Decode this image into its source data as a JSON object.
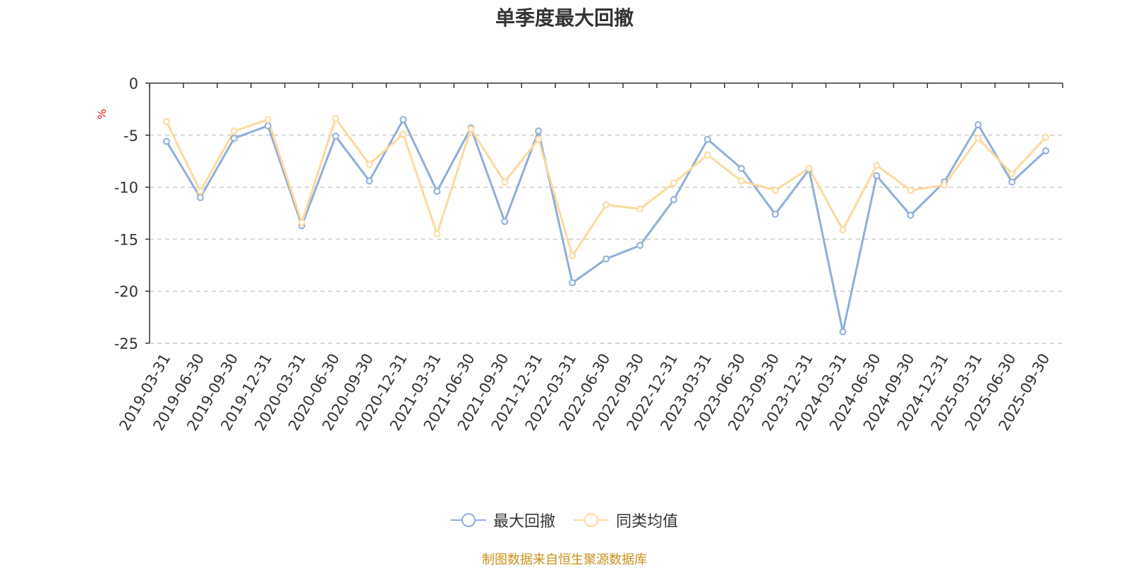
{
  "chart_data": {
    "type": "line",
    "title": "单季度最大回撤",
    "ylabel": "%",
    "ylim": [
      -25,
      0
    ],
    "yticks": [
      0,
      -5,
      -10,
      -15,
      -20,
      -25
    ],
    "grid": true,
    "legend_position": "bottom",
    "categories": [
      "2019-03-31",
      "2019-06-30",
      "2019-09-30",
      "2019-12-31",
      "2020-03-31",
      "2020-06-30",
      "2020-09-30",
      "2020-12-31",
      "2021-03-31",
      "2021-06-30",
      "2021-09-30",
      "2021-12-31",
      "2022-03-31",
      "2022-06-30",
      "2022-09-30",
      "2022-12-31",
      "2023-03-31",
      "2023-06-30",
      "2023-09-30",
      "2023-12-31",
      "2024-03-31",
      "2024-06-30",
      "2024-09-30",
      "2024-12-31",
      "2025-03-31",
      "2025-06-30",
      "2025-09-30"
    ],
    "series": [
      {
        "name": "最大回撤",
        "color": "#8eaedb",
        "values": [
          -5.6,
          -11.0,
          -5.3,
          -4.1,
          -13.7,
          -5.1,
          -9.4,
          -3.5,
          -10.4,
          -4.3,
          -13.3,
          -4.6,
          -19.2,
          -16.9,
          -15.6,
          -11.2,
          -5.4,
          -8.2,
          -12.6,
          -8.3,
          -23.9,
          -8.9,
          -12.7,
          -9.5,
          -4.0,
          -9.5,
          -6.5
        ]
      },
      {
        "name": "同类均值",
        "color": "#fdd99b",
        "values": [
          -3.7,
          -10.4,
          -4.6,
          -3.5,
          -13.4,
          -3.4,
          -7.8,
          -4.9,
          -14.5,
          -4.4,
          -9.5,
          -5.4,
          -16.6,
          -11.7,
          -12.1,
          -9.6,
          -6.9,
          -9.4,
          -10.3,
          -8.2,
          -14.1,
          -7.9,
          -10.3,
          -9.8,
          -5.3,
          -8.7,
          -5.2
        ]
      }
    ]
  },
  "footer": {
    "source": "制图数据来自恒生聚源数据库"
  }
}
